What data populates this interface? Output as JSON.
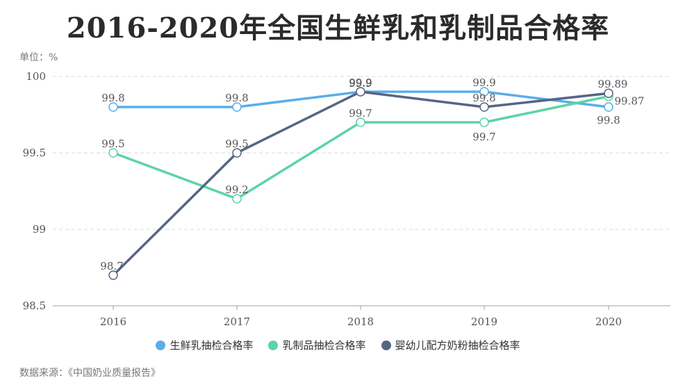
{
  "header": {
    "title": "2016-2020年全国生鲜乳和乳制品合格率",
    "unit": "单位：%"
  },
  "source": "数据来源：《中国奶业质量报告》",
  "chart_data": {
    "type": "line",
    "title": "2016-2020年全国生鲜乳和乳制品合格率",
    "ylabel": "单位：%",
    "categories": [
      "2016",
      "2017",
      "2018",
      "2019",
      "2020"
    ],
    "yticks": [
      "98.5",
      "99",
      "99.5",
      "100"
    ],
    "ylim": [
      98.5,
      100
    ],
    "grid": "horizontal dashed",
    "legend_position": "bottom",
    "series": [
      {
        "name": "生鲜乳抽检合格率",
        "color": "#5aaeea",
        "values": [
          99.8,
          99.8,
          99.9,
          99.9,
          99.8
        ],
        "labels": [
          "99.8",
          "99.8",
          "99.9",
          "99.9",
          "99.8"
        ]
      },
      {
        "name": "乳制品抽检合格率",
        "color": "#5dd3a6",
        "values": [
          99.5,
          99.2,
          99.7,
          99.7,
          99.87
        ],
        "labels": [
          "99.5",
          "99.2",
          "99.7",
          "99.7",
          "99.87"
        ]
      },
      {
        "name": "婴幼儿配方奶粉抽检合格率",
        "color": "#566584",
        "values": [
          98.7,
          99.5,
          99.9,
          99.8,
          99.89
        ],
        "labels": [
          "98.7",
          "99.5",
          "99.9",
          "99.8",
          "99.89"
        ]
      }
    ]
  }
}
